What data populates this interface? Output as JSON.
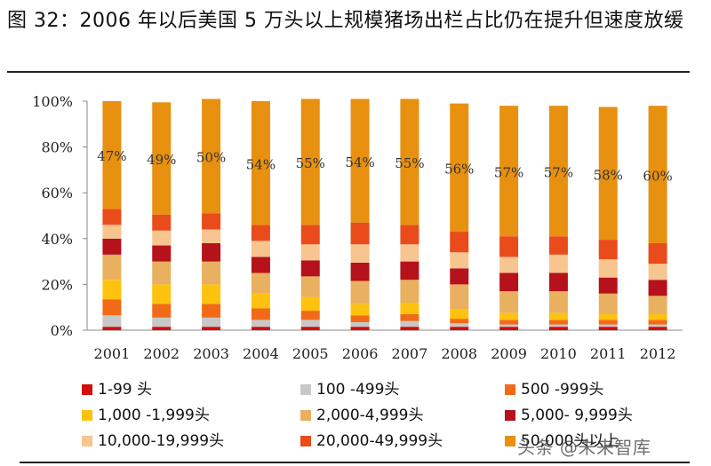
{
  "header": {
    "title": "图 32：2006 年以后美国 5 万头以上规模猪场出栏占比仍在提升但速度放缓"
  },
  "watermark": "头条 @未来智库",
  "chart_data": {
    "type": "bar",
    "stacked": true,
    "title": "",
    "xlabel": "",
    "ylabel": "",
    "ylim": [
      0,
      100
    ],
    "yticks": [
      "0%",
      "20%",
      "40%",
      "60%",
      "80%",
      "100%"
    ],
    "categories": [
      "2001",
      "2002",
      "2003",
      "2004",
      "2005",
      "2006",
      "2007",
      "2008",
      "2009",
      "2010",
      "2011",
      "2012"
    ],
    "series": [
      {
        "name": "1-99 头",
        "color": "#d40d0d",
        "values": [
          1.5,
          1.5,
          1.5,
          1.5,
          1.5,
          1.5,
          1.5,
          1.5,
          1.5,
          1.5,
          1.5,
          1.5
        ]
      },
      {
        "name": "100 -499头",
        "color": "#c8c8c8",
        "values": [
          5,
          4,
          4,
          3,
          3,
          2,
          2.5,
          1.5,
          1,
          1,
          1,
          1
        ]
      },
      {
        "name": "500 -999头",
        "color": "#f26a17",
        "values": [
          7,
          6,
          6,
          5,
          4,
          3,
          3,
          2,
          2,
          2,
          2,
          2
        ]
      },
      {
        "name": "1,000 -1,999头",
        "color": "#ffc20e",
        "values": [
          8.5,
          8.5,
          8.5,
          6.5,
          6,
          5,
          5,
          4,
          3,
          3,
          2.5,
          2.5
        ]
      },
      {
        "name": "2,000-4,999头",
        "color": "#e8b05f",
        "values": [
          11,
          10,
          10,
          9,
          9,
          10,
          10,
          11,
          9.5,
          9.5,
          9,
          8
        ]
      },
      {
        "name": "5,000- 9,999头",
        "color": "#b5121b",
        "values": [
          7,
          7,
          8,
          7,
          7,
          8,
          8,
          7,
          8,
          8,
          7,
          7
        ]
      },
      {
        "name": "10,000-19,999头",
        "color": "#f8c48f",
        "values": [
          6,
          6.5,
          6,
          7,
          7,
          8,
          7.5,
          7,
          7,
          8,
          8,
          7
        ]
      },
      {
        "name": "20,000-49,999头",
        "color": "#e94b1b",
        "values": [
          7,
          7,
          7,
          7,
          8.5,
          9.5,
          8.5,
          9,
          9,
          8,
          8.5,
          9
        ]
      },
      {
        "name": "50,000头以上",
        "color": "#e8900f",
        "values": [
          47,
          49,
          50,
          54,
          55,
          54,
          55,
          56,
          57,
          57,
          58,
          60
        ]
      }
    ],
    "pct_labels": [
      "47%",
      "49%",
      "50%",
      "54%",
      "55%",
      "54%",
      "55%",
      "56%",
      "57%",
      "57%",
      "58%",
      "60%"
    ]
  }
}
